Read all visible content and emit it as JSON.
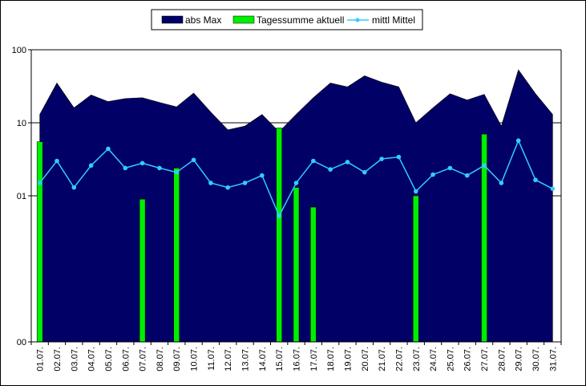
{
  "chart_data": {
    "type": "area",
    "categories": [
      "01.07.",
      "02.07.",
      "03.07.",
      "04.07.",
      "05.07.",
      "06.07.",
      "07.07.",
      "08.07.",
      "09.07.",
      "10.07.",
      "11.07.",
      "12.07.",
      "13.07.",
      "14.07.",
      "15.07.",
      "16.07.",
      "17.07.",
      "18.07.",
      "19.07.",
      "20.07.",
      "21.07.",
      "22.07.",
      "23.07.",
      "24.07.",
      "25.07.",
      "26.07.",
      "27.07.",
      "28.07.",
      "29.07.",
      "30.07.",
      "31.07."
    ],
    "y_scale": "log",
    "ylim": [
      0.01,
      100
    ],
    "y_ticks": [
      {
        "value": 100,
        "label": "100"
      },
      {
        "value": 10,
        "label": "10"
      },
      {
        "value": 1,
        "label": "01"
      },
      {
        "value": 0.01,
        "label": "00"
      }
    ],
    "grid": true,
    "legend_position": "top",
    "series": [
      {
        "name": "abs Max",
        "type": "area",
        "color": "#000066",
        "values": [
          13,
          35,
          16,
          24,
          19.5,
          21.5,
          22,
          19,
          16.5,
          25.5,
          14,
          8,
          9,
          13,
          7.5,
          13,
          22,
          35,
          31,
          44,
          36,
          31,
          10,
          16,
          25,
          20.5,
          24.5,
          9,
          53,
          25,
          13
        ]
      },
      {
        "name": "Tagessumme aktuell",
        "type": "bar",
        "color": "#00ee00",
        "values": [
          5.5,
          null,
          null,
          null,
          null,
          null,
          0.9,
          null,
          2.4,
          null,
          null,
          null,
          null,
          null,
          8.5,
          1.3,
          0.7,
          null,
          null,
          null,
          null,
          null,
          1.0,
          null,
          null,
          null,
          7.0,
          null,
          null,
          null,
          null
        ]
      },
      {
        "name": "mittl Mittel",
        "type": "line",
        "color": "#33ccff",
        "values": [
          1.5,
          3.0,
          1.3,
          2.6,
          4.4,
          2.4,
          2.8,
          2.4,
          2.1,
          3.1,
          1.5,
          1.3,
          1.5,
          1.9,
          0.53,
          1.5,
          3.0,
          2.3,
          2.9,
          2.1,
          3.2,
          3.4,
          1.15,
          1.95,
          2.4,
          1.9,
          2.6,
          1.5,
          5.7,
          1.65,
          1.25
        ]
      }
    ]
  }
}
